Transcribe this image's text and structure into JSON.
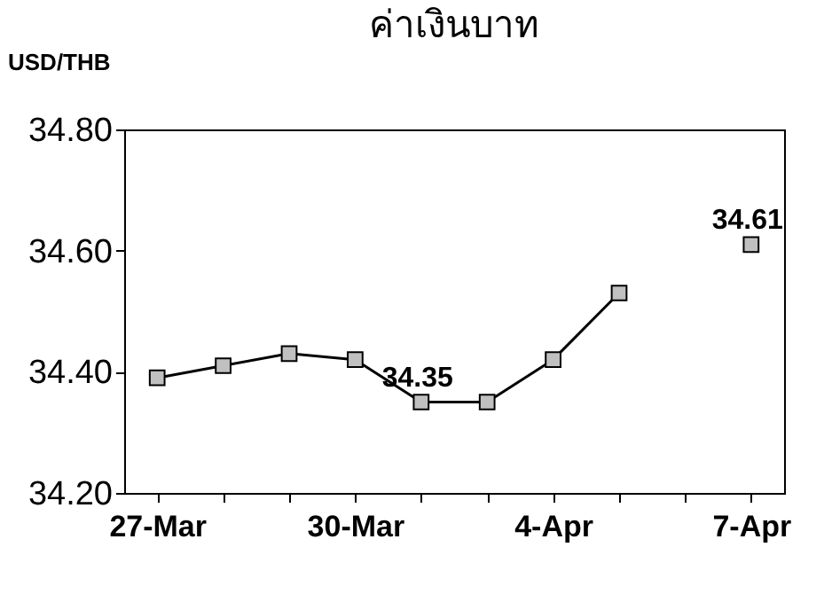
{
  "chart_data": {
    "type": "line",
    "title": "ค่าเงินบาท",
    "ylabel": "USD/THB",
    "categories": [
      "27-Mar",
      null,
      null,
      "30-Mar",
      null,
      null,
      "4-Apr",
      null,
      null,
      "7-Apr"
    ],
    "series": [
      {
        "color": "#000000",
        "values": [
          34.39,
          34.41,
          34.43,
          34.42,
          34.35,
          34.35,
          34.42,
          34.53,
          null,
          34.61
        ],
        "value_labels": [
          null,
          null,
          null,
          null,
          "34.35",
          null,
          null,
          null,
          null,
          "34.61"
        ]
      }
    ],
    "ylim": [
      34.2,
      34.8
    ],
    "yticks": [
      {
        "value": 34.2,
        "label": "34.20"
      },
      {
        "value": 34.4,
        "label": "34.40"
      },
      {
        "value": 34.6,
        "label": "34.60"
      },
      {
        "value": 34.8,
        "label": "34.80"
      }
    ],
    "marker": "square",
    "grid": false,
    "legend": false
  }
}
